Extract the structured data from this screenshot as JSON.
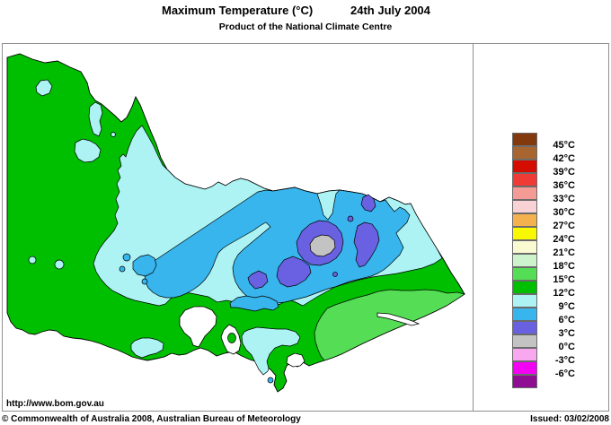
{
  "header": {
    "title": "Maximum Temperature (°C)",
    "date": "24th July 2004",
    "subtitle": "Product of the National Climate Centre"
  },
  "map_panel": {
    "url_label": "http://www.bom.gov.au",
    "region": "Victoria"
  },
  "legend": {
    "box_colors": [
      "#83390E",
      "#A8652F",
      "#D40D00",
      "#EF3A36",
      "#F39B94",
      "#F8D2D4",
      "#F4B24F",
      "#F8F800",
      "#FAFAD2",
      "#CDF3CD",
      "#55DE55",
      "#00BE00",
      "#ADF3F3",
      "#38B5EC",
      "#6A61E2",
      "#C3C3C3",
      "#F7A8EF",
      "#F303F3",
      "#8E0D93"
    ],
    "tick_labels": [
      "45°C",
      "42°C",
      "39°C",
      "36°C",
      "33°C",
      "30°C",
      "27°C",
      "24°C",
      "21°C",
      "18°C",
      "15°C",
      "12°C",
      "9°C",
      "6°C",
      "3°C",
      "0°C",
      "-3°C",
      "-6°C"
    ]
  },
  "footer": {
    "copyright": "© Commonwealth of Australia 2008, Australian Bureau of Meteorology",
    "issued": "Issued: 03/02/2008"
  }
}
